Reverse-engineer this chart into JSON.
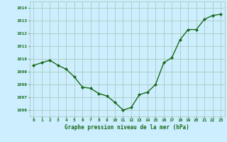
{
  "x": [
    0,
    1,
    2,
    3,
    4,
    5,
    6,
    7,
    8,
    9,
    10,
    11,
    12,
    13,
    14,
    15,
    16,
    17,
    18,
    19,
    20,
    21,
    22,
    23
  ],
  "y": [
    1009.5,
    1009.7,
    1009.9,
    1009.5,
    1009.2,
    1008.6,
    1007.8,
    1007.7,
    1007.3,
    1007.1,
    1006.6,
    1006.0,
    1006.2,
    1007.2,
    1007.4,
    1008.0,
    1009.7,
    1010.1,
    1011.5,
    1012.3,
    1012.3,
    1013.1,
    1013.4,
    1013.5
  ],
  "ylim": [
    1005.5,
    1014.5
  ],
  "yticks": [
    1006,
    1007,
    1008,
    1009,
    1010,
    1011,
    1012,
    1013,
    1014
  ],
  "xticks": [
    0,
    1,
    2,
    3,
    4,
    5,
    6,
    7,
    8,
    9,
    10,
    11,
    12,
    13,
    14,
    15,
    16,
    17,
    18,
    19,
    20,
    21,
    22,
    23
  ],
  "xlabel": "Graphe pression niveau de la mer (hPa)",
  "line_color": "#1a6b1a",
  "marker": "D",
  "marker_size": 2.0,
  "background_color": "#cceeff",
  "grid_color": "#aaccbb",
  "tick_label_color": "#1a6b1a",
  "xlabel_color": "#1a6b1a",
  "linewidth": 1.0
}
